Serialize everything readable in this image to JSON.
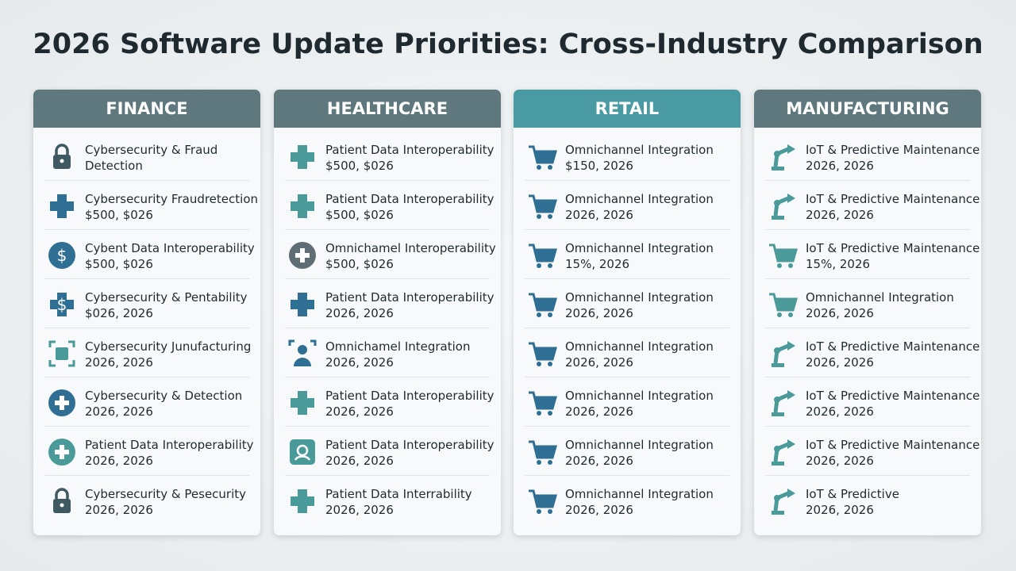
{
  "title": "2026 Software Update Priorities: Cross-Industry Comparison",
  "columns": [
    {
      "header": "FINANCE",
      "items": [
        {
          "title": "Cybersecurity & Fraud",
          "detail": "Detection"
        },
        {
          "title": "Cybersecurity Fraudretection",
          "detail": "$500, $026"
        },
        {
          "title": "Cybent Data Interoperability",
          "detail": "$500, $026"
        },
        {
          "title": "Cybersecurity & Pentability",
          "detail": "$026, 2026"
        },
        {
          "title": "Cybersecurity Junufacturing",
          "detail": "2026, 2026"
        },
        {
          "title": "Cybersecurity & Detection",
          "detail": "2026, 2026"
        },
        {
          "title": "Patient Data Interoperability",
          "detail": "2026, 2026"
        },
        {
          "title": "Cybersecurity & Pesecurity",
          "detail": "2026, 2026"
        }
      ]
    },
    {
      "header": "HEALTHCARE",
      "items": [
        {
          "title": "Patient Data Interoperability",
          "detail": "$500, $026"
        },
        {
          "title": "Patient Data Interoperability",
          "detail": "$500, $026"
        },
        {
          "title": "Omnichamel Interoperability",
          "detail": "$500, $026"
        },
        {
          "title": "Patient Data Interoperability",
          "detail": "2026, 2026"
        },
        {
          "title": "Omnichamel Integration",
          "detail": "2026, 2026"
        },
        {
          "title": "Patient Data Interoperability",
          "detail": "2026, 2026"
        },
        {
          "title": "Patient Data Interoperability",
          "detail": "2026, 2026"
        },
        {
          "title": "Patient Data Interrability",
          "detail": "2026, 2026"
        }
      ]
    },
    {
      "header": "RETAIL",
      "items": [
        {
          "title": "Omnichannel Integration",
          "detail": "$150, 2026"
        },
        {
          "title": "Omnichannel Integration",
          "detail": "2026, 2026"
        },
        {
          "title": "Omnichannel Integration",
          "detail": "15%, 2026"
        },
        {
          "title": "Omnichannel Integration",
          "detail": "2026, 2026"
        },
        {
          "title": "Omnichannel Integration",
          "detail": "2026, 2026"
        },
        {
          "title": "Omnichannel Integration",
          "detail": "2026, 2026"
        },
        {
          "title": "Omnichannel Integration",
          "detail": "2026, 2026"
        },
        {
          "title": "Omnichannel Integration",
          "detail": "2026, 2026"
        }
      ]
    },
    {
      "header": "MANUFACTURING",
      "items": [
        {
          "title": "IoT & Predictive Maintenance",
          "detail": "2026, 2026"
        },
        {
          "title": "IoT & Predictive Maintenance",
          "detail": "2026, 2026"
        },
        {
          "title": "IoT & Predictive Maintenance",
          "detail": "15%, 2026"
        },
        {
          "title": "Omnichannel Integration",
          "detail": "2026, 2026"
        },
        {
          "title": "IoT & Predictive Maintenance",
          "detail": "2026, 2026"
        },
        {
          "title": "IoT & Predictive Maintenance",
          "detail": "2026, 2026"
        },
        {
          "title": "IoT & Predictive Maintenance",
          "detail": "2026, 2026"
        },
        {
          "title": "IoT & Predictive",
          "detail": "2026, 2026"
        }
      ]
    }
  ]
}
